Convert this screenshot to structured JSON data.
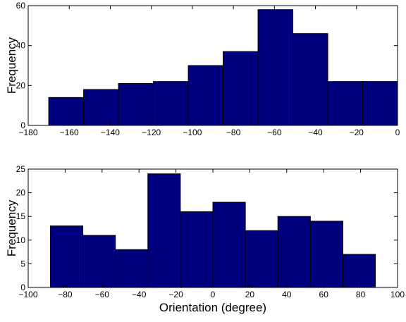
{
  "chart_data": [
    {
      "type": "bar",
      "bin_edges": [
        -170,
        -153,
        -136,
        -119,
        -102,
        -85,
        -68,
        -51,
        -34,
        -17,
        0
      ],
      "values": [
        14,
        18,
        21,
        22,
        30,
        37,
        58,
        46,
        22,
        22
      ],
      "xlim": [
        -180,
        0
      ],
      "ylim": [
        0,
        60
      ],
      "xticks": [
        -180,
        -160,
        -140,
        -120,
        -100,
        -80,
        -60,
        -40,
        -20,
        0
      ],
      "yticks": [
        0,
        20,
        40,
        60
      ],
      "xlabel": "",
      "ylabel": "Frequency",
      "bar_color": "#00007f",
      "edge_color": "#000000",
      "grid": false
    },
    {
      "type": "bar",
      "bin_edges": [
        -88,
        -70.4,
        -52.8,
        -35.2,
        -17.6,
        0,
        17.6,
        35.2,
        52.8,
        70.4,
        88
      ],
      "values": [
        13,
        11,
        8,
        24,
        16,
        18,
        12,
        15,
        14,
        7
      ],
      "xlim": [
        -100,
        100
      ],
      "ylim": [
        0,
        25
      ],
      "xticks": [
        -100,
        -80,
        -60,
        -40,
        -20,
        0,
        20,
        40,
        60,
        80,
        100
      ],
      "yticks": [
        0,
        5,
        10,
        15,
        20,
        25
      ],
      "xlabel": "Orientation (degree)",
      "ylabel": "Frequency",
      "bar_color": "#00007f",
      "edge_color": "#000000",
      "grid": false
    }
  ]
}
